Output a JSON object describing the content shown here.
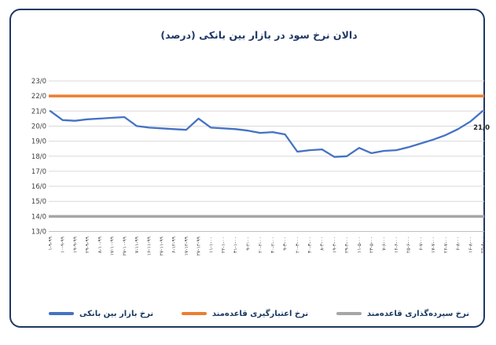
{
  "chart_data": {
    "type": "line",
    "title": "دالان نرخ سود در بازار بین بانکی (درصد)",
    "categories": [
      "۱-۹-۹۹",
      "۱۰-۹-۹۹",
      "۱۹-۹-۹۹",
      "۲۹-۹-۹۹",
      "۸-۱۰-۹۹",
      "۱۷-۱۰-۹۹",
      "۲۷-۱۰-۹۹",
      "۷-۱۱-۹۹",
      "۱۶-۱۱-۹۹",
      "۲۷-۱۱-۹۹",
      "۶-۱۲-۹۹",
      "۱۷-۱۲-۹۹",
      "۲۷-۱۲-۹۹",
      "۱۱-۱-۰۰",
      "۲۲-۱-۰۰",
      "۳۱-۱-۰۰",
      "۹-۲-۰۰",
      "۲۰-۲-۰۰",
      "۳۰-۲-۰۰",
      "۹-۳-۰۰",
      "۲۰-۳-۰۰",
      "۳۰-۳-۰۰",
      "۸-۴-۰۰",
      "۱۹-۴-۰۰",
      "۲۹-۴-۰۰",
      "۱۱-۵-۰۰",
      "۲۳-۵-۰۰",
      "۷-۶-۰۰",
      "۱۶-۶-۰۰",
      "۲۵-۶-۰۰",
      "۶-۷-۰۰",
      "۱۷-۷-۰۰",
      "۲۶-۷-۰۰",
      "۶-۸-۰۰",
      "۱۶-۸-۰۰",
      "۲۵-۸-۰۰"
    ],
    "series": [
      {
        "name": "نرخ بازار بین بانکی",
        "color": "#4472C4",
        "values": [
          21.0,
          20.4,
          20.35,
          20.45,
          20.5,
          20.55,
          20.6,
          20.0,
          19.9,
          19.85,
          19.8,
          19.75,
          20.5,
          19.9,
          19.85,
          19.8,
          19.7,
          19.55,
          19.6,
          19.45,
          18.3,
          18.4,
          18.45,
          17.95,
          18.0,
          18.55,
          18.2,
          18.35,
          18.4,
          18.6,
          18.85,
          19.1,
          19.4,
          19.8,
          20.3,
          21.0
        ]
      },
      {
        "name": "نرخ اعتبارگیری قاعده‌مند",
        "color": "#ED7D31",
        "constant": 22.0
      },
      {
        "name": "نرخ سپرده‌گذاری قاعده‌مند",
        "color": "#A6A6A6",
        "constant": 14.0
      }
    ],
    "ylim": [
      13,
      23
    ],
    "ytick_labels": [
      "13/0",
      "14/0",
      "15/0",
      "16/0",
      "17/0",
      "18/0",
      "19/0",
      "20/0",
      "21/0",
      "22/0",
      "23/0"
    ],
    "grid": true,
    "legend_position": "bottom",
    "endpoint_label": "21/0"
  },
  "legend": {
    "items": [
      {
        "label": "نرخ بازار بین بانکی",
        "color": "#4472C4"
      },
      {
        "label": "نرخ اعتبارگیری قاعده‌مند",
        "color": "#ED7D31"
      },
      {
        "label": "نرخ سپرده‌گذاری قاعده‌مند",
        "color": "#A6A6A6"
      }
    ]
  },
  "colors": {
    "border": "#1f3864",
    "title_text": "#1f3864",
    "gridline": "#d9d9d9",
    "axis_line": "#bfbfbf",
    "axis_text": "#404040",
    "endpoint_label_text": "#262626"
  }
}
